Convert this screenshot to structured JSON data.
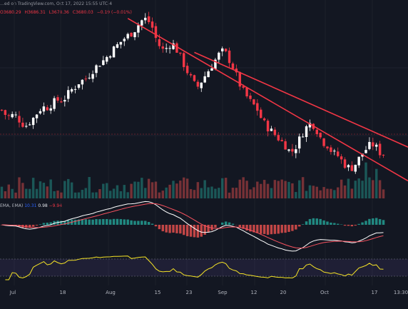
{
  "header": {
    "text": "…ed on TradingView.com, Oct 17, 2022 15:55 UTC-4"
  },
  "ohlc": {
    "o": "O3680.29",
    "h": "H3686.31",
    "l": "L3678.36",
    "c": "C3680.03",
    "chg": "−0.19 (−0.01%)"
  },
  "macd_legend": {
    "label": "EMA, EMA)",
    "v1": "10.31",
    "v2": "0.98",
    "v3": "−9.94"
  },
  "colors": {
    "background": "#131722",
    "up": "#ffffff",
    "down": "#f23645",
    "trendline": "#f23645",
    "rsi": "#f5e326",
    "rsi_band": "#7e57c2",
    "macd_line": "#ffffff",
    "signal_line": "#f7525f",
    "hist_pos": "#26a69a",
    "hist_neg": "#ef5350"
  },
  "chart_data": {
    "type": "candlestick",
    "x_labels": [
      "Jul",
      "18",
      "Aug",
      "15",
      "23",
      "Sep",
      "12",
      "20",
      "Oct",
      "17",
      "13:30"
    ],
    "price_path": [
      3855,
      3830,
      3820,
      3835,
      3815,
      3790,
      3780,
      3800,
      3820,
      3850,
      3870,
      3865,
      3880,
      3895,
      3905,
      3900,
      3925,
      3950,
      3965,
      3990,
      4000,
      4010,
      4040,
      4060,
      4080,
      4095,
      4115,
      4140,
      4160,
      4180,
      4200,
      4215,
      4230,
      4250,
      4280,
      4300,
      4290,
      4260,
      4200,
      4160,
      4140,
      4170,
      4180,
      4150,
      4110,
      4070,
      4030,
      3995,
      3960,
      3990,
      4020,
      4050,
      4080,
      4110,
      4140,
      4135,
      4100,
      4060,
      4010,
      3960,
      3930,
      3900,
      3880,
      3855,
      3810,
      3780,
      3760,
      3740,
      3720,
      3700,
      3680,
      3650,
      3660,
      3700,
      3740,
      3770,
      3790,
      3780,
      3740,
      3700,
      3690,
      3660,
      3640,
      3630,
      3600,
      3580,
      3570,
      3590,
      3620,
      3650,
      3670,
      3690,
      3680,
      3650,
      3640
    ],
    "trendlines": [
      {
        "from_index": 36,
        "to_index": 110,
        "from_price": 4300,
        "to_price": 3570
      },
      {
        "from_index": 55,
        "to_index": 110,
        "from_price": 4135,
        "to_price": 3720
      }
    ],
    "macd": {
      "macd_line": "white",
      "signal_line": "red"
    },
    "rsi": {
      "band_upper": 70,
      "band_lower": 30
    }
  }
}
